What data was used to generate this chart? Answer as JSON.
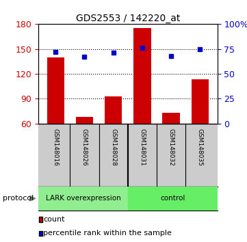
{
  "title": "GDS2553 / 142220_at",
  "samples": [
    "GSM148016",
    "GSM148026",
    "GSM148028",
    "GSM148031",
    "GSM148032",
    "GSM148035"
  ],
  "counts": [
    140,
    68,
    93,
    175,
    73,
    113
  ],
  "percentile_ranks": [
    72,
    67,
    71,
    76,
    68,
    75
  ],
  "ylim_left": [
    60,
    180
  ],
  "ylim_right": [
    0,
    100
  ],
  "yticks_left": [
    60,
    90,
    120,
    150,
    180
  ],
  "yticks_right": [
    0,
    25,
    50,
    75,
    100
  ],
  "ytick_labels_right": [
    "0",
    "25",
    "50",
    "75",
    "100%"
  ],
  "bar_color": "#cc0000",
  "dot_color": "#0000cc",
  "group1_label": "LARK overexpression",
  "group2_label": "control",
  "group1_color": "#90ee90",
  "group2_color": "#66ee66",
  "protocol_label": "protocol",
  "legend_count": "count",
  "legend_prank": "percentile rank within the sample",
  "bar_baseline": 60,
  "tick_bg_color": "#cccccc",
  "tick_label_color_left": "#cc0000",
  "tick_label_color_right": "#0000cc",
  "grid_yticks": [
    90,
    120,
    150
  ],
  "n_groups1": 3,
  "n_groups2": 3,
  "bar_width": 0.6
}
